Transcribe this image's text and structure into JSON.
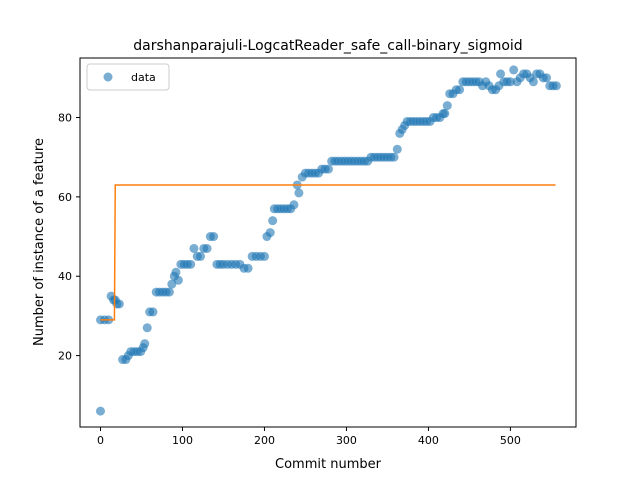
{
  "chart_data": {
    "type": "scatter",
    "title": "darshanparajuli-LogcatReader_safe_call-binary_sigmoid",
    "xlabel": "Commit number",
    "ylabel": "Number of instance of a feature",
    "xlim": [
      -25,
      580
    ],
    "ylim": [
      2,
      95
    ],
    "x_ticks": [
      0,
      100,
      200,
      300,
      400,
      500
    ],
    "y_ticks": [
      20,
      40,
      60,
      80
    ],
    "grid": false,
    "legend": {
      "placement": "top-left",
      "entries": [
        "data"
      ]
    },
    "colors": {
      "scatter": "#1f77b4",
      "fit": "#ff7f0e"
    },
    "series": [
      {
        "name": "data",
        "kind": "scatter",
        "points": [
          [
            0,
            6
          ],
          [
            0,
            29
          ],
          [
            5,
            29
          ],
          [
            10,
            29
          ],
          [
            13,
            35
          ],
          [
            16,
            34
          ],
          [
            18,
            34
          ],
          [
            20,
            33
          ],
          [
            23,
            33
          ],
          [
            27,
            19
          ],
          [
            31,
            19
          ],
          [
            34,
            20
          ],
          [
            37,
            21
          ],
          [
            41,
            21
          ],
          [
            45,
            21
          ],
          [
            49,
            21
          ],
          [
            52,
            22
          ],
          [
            54,
            23
          ],
          [
            57,
            27
          ],
          [
            60,
            31
          ],
          [
            64,
            31
          ],
          [
            68,
            36
          ],
          [
            72,
            36
          ],
          [
            76,
            36
          ],
          [
            80,
            36
          ],
          [
            84,
            36
          ],
          [
            87,
            38
          ],
          [
            90,
            40
          ],
          [
            92,
            41
          ],
          [
            95,
            39
          ],
          [
            98,
            43
          ],
          [
            102,
            43
          ],
          [
            106,
            43
          ],
          [
            110,
            43
          ],
          [
            114,
            47
          ],
          [
            118,
            45
          ],
          [
            122,
            45
          ],
          [
            126,
            47
          ],
          [
            130,
            47
          ],
          [
            134,
            50
          ],
          [
            138,
            50
          ],
          [
            142,
            43
          ],
          [
            146,
            43
          ],
          [
            150,
            43
          ],
          [
            155,
            43
          ],
          [
            160,
            43
          ],
          [
            165,
            43
          ],
          [
            170,
            43
          ],
          [
            175,
            42
          ],
          [
            180,
            42
          ],
          [
            185,
            45
          ],
          [
            190,
            45
          ],
          [
            195,
            45
          ],
          [
            200,
            45
          ],
          [
            203,
            50
          ],
          [
            207,
            51
          ],
          [
            210,
            54
          ],
          [
            212,
            57
          ],
          [
            216,
            57
          ],
          [
            220,
            57
          ],
          [
            224,
            57
          ],
          [
            228,
            57
          ],
          [
            232,
            57
          ],
          [
            236,
            58
          ],
          [
            240,
            63
          ],
          [
            242,
            61
          ],
          [
            246,
            65
          ],
          [
            250,
            66
          ],
          [
            254,
            66
          ],
          [
            258,
            66
          ],
          [
            262,
            66
          ],
          [
            266,
            66
          ],
          [
            270,
            67
          ],
          [
            274,
            67
          ],
          [
            278,
            67
          ],
          [
            282,
            69
          ],
          [
            286,
            69
          ],
          [
            290,
            69
          ],
          [
            294,
            69
          ],
          [
            298,
            69
          ],
          [
            302,
            69
          ],
          [
            306,
            69
          ],
          [
            310,
            69
          ],
          [
            314,
            69
          ],
          [
            318,
            69
          ],
          [
            322,
            69
          ],
          [
            326,
            69
          ],
          [
            330,
            70
          ],
          [
            334,
            70
          ],
          [
            338,
            70
          ],
          [
            342,
            70
          ],
          [
            346,
            70
          ],
          [
            350,
            70
          ],
          [
            354,
            70
          ],
          [
            358,
            70
          ],
          [
            362,
            72
          ],
          [
            365,
            76
          ],
          [
            368,
            77
          ],
          [
            371,
            78
          ],
          [
            374,
            79
          ],
          [
            378,
            79
          ],
          [
            382,
            79
          ],
          [
            386,
            79
          ],
          [
            390,
            79
          ],
          [
            394,
            79
          ],
          [
            398,
            79
          ],
          [
            402,
            79
          ],
          [
            406,
            80
          ],
          [
            410,
            80
          ],
          [
            414,
            80
          ],
          [
            418,
            81
          ],
          [
            420,
            81
          ],
          [
            423,
            83
          ],
          [
            426,
            86
          ],
          [
            430,
            86
          ],
          [
            434,
            87
          ],
          [
            438,
            87
          ],
          [
            442,
            89
          ],
          [
            446,
            89
          ],
          [
            450,
            89
          ],
          [
            454,
            89
          ],
          [
            458,
            89
          ],
          [
            462,
            89
          ],
          [
            466,
            88
          ],
          [
            470,
            89
          ],
          [
            474,
            88
          ],
          [
            478,
            87
          ],
          [
            482,
            87
          ],
          [
            486,
            88
          ],
          [
            488,
            91
          ],
          [
            492,
            89
          ],
          [
            496,
            89
          ],
          [
            500,
            89
          ],
          [
            504,
            92
          ],
          [
            508,
            89
          ],
          [
            512,
            90
          ],
          [
            516,
            91
          ],
          [
            520,
            91
          ],
          [
            524,
            90
          ],
          [
            528,
            89
          ],
          [
            532,
            91
          ],
          [
            536,
            91
          ],
          [
            540,
            90
          ],
          [
            544,
            90
          ],
          [
            548,
            88
          ],
          [
            552,
            88
          ],
          [
            556,
            88
          ]
        ]
      },
      {
        "name": "",
        "kind": "line",
        "points": [
          [
            0,
            29
          ],
          [
            17,
            29
          ],
          [
            18,
            63
          ],
          [
            555,
            63
          ]
        ]
      }
    ]
  }
}
